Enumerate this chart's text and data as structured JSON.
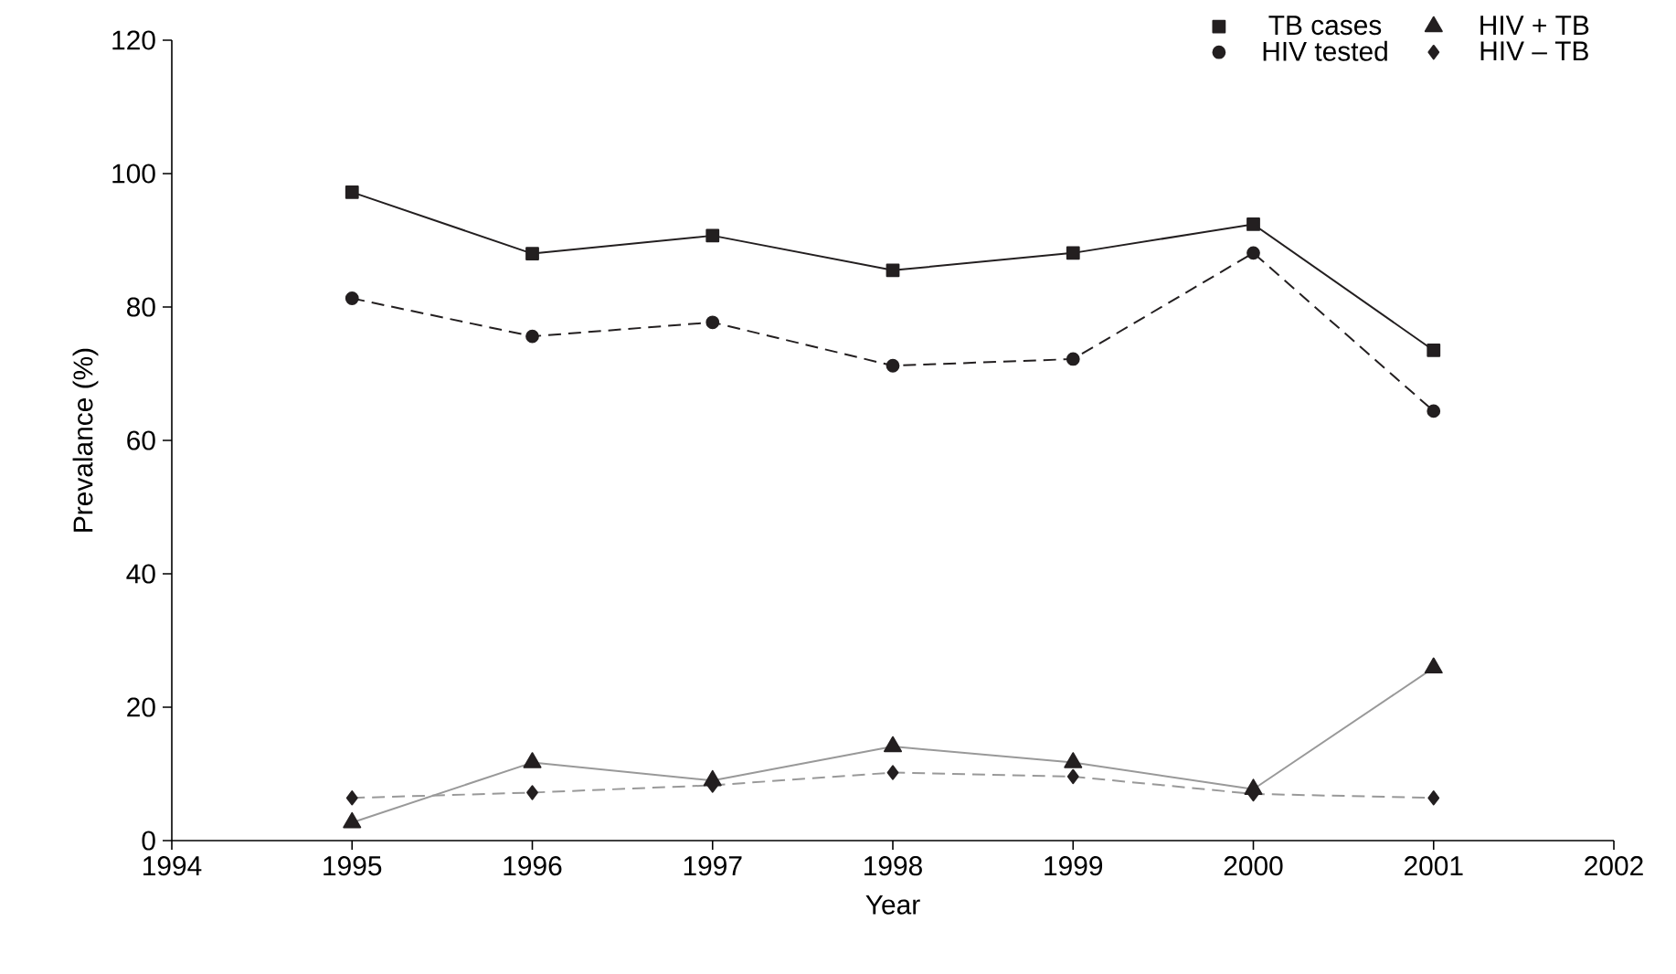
{
  "chart_data": {
    "type": "line",
    "xlabel": "Year",
    "ylabel": "Prevalance (%)",
    "x": [
      1995,
      1996,
      1997,
      1998,
      1999,
      2000,
      2001
    ],
    "series": [
      {
        "name": "TB cases",
        "color": "#231f20",
        "marker": "square",
        "line_style": "solid",
        "values": [
          97.2,
          88.0,
          90.7,
          85.5,
          88.1,
          92.4,
          73.5
        ]
      },
      {
        "name": "HIV tested",
        "color": "#231f20",
        "marker": "circle",
        "line_style": "dashed",
        "values": [
          81.3,
          75.6,
          77.7,
          71.2,
          72.2,
          88.1,
          64.4
        ]
      },
      {
        "name": "HIV + TB",
        "color": "#999999",
        "marker": "triangle",
        "line_style": "solid",
        "values": [
          2.7,
          11.7,
          9.0,
          14.1,
          11.7,
          7.7,
          25.9
        ]
      },
      {
        "name": "HIV – TB",
        "color": "#999999",
        "marker": "diamond",
        "line_style": "dashed",
        "values": [
          6.4,
          7.2,
          8.3,
          10.2,
          9.6,
          7.0,
          6.4
        ]
      }
    ],
    "xlim": [
      1994,
      2002
    ],
    "xticks": [
      1994,
      1995,
      1996,
      1997,
      1998,
      1999,
      2000,
      2001,
      2002
    ],
    "ylim": [
      0,
      120
    ],
    "yticks": [
      0,
      20,
      40,
      60,
      80,
      100,
      120
    ],
    "grid": false,
    "legend": "top right"
  }
}
